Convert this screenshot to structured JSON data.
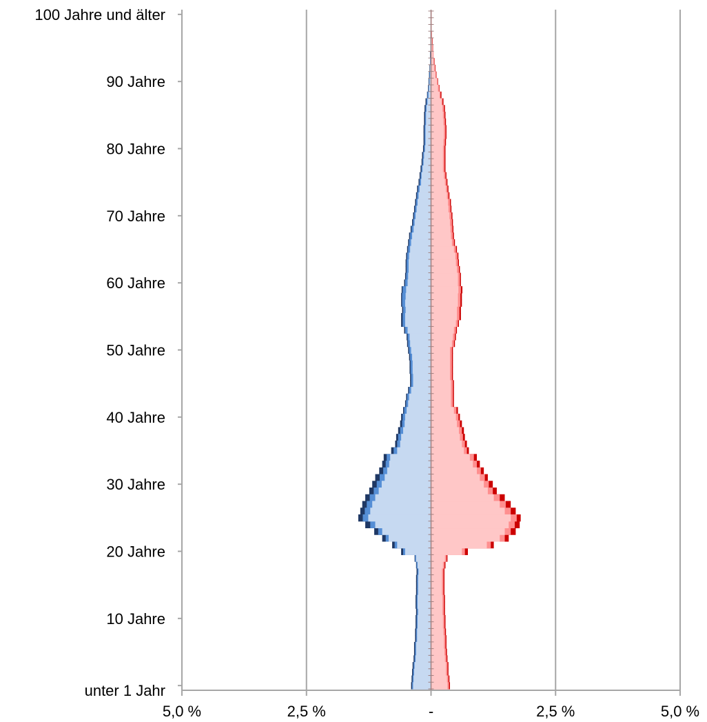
{
  "chart_data": {
    "type": "bar",
    "orientation": "horizontal",
    "layout": "population-pyramid",
    "age_labels": [
      "unter 1 Jahr",
      "10 Jahre",
      "20 Jahre",
      "30 Jahre",
      "40 Jahre",
      "50 Jahre",
      "60 Jahre",
      "70 Jahre",
      "80 Jahre",
      "90 Jahre",
      "100 Jahre und älter"
    ],
    "age_label_positions": [
      0,
      10,
      20,
      30,
      40,
      50,
      60,
      70,
      80,
      90,
      100
    ],
    "x_tick_labels": [
      "5,0 %",
      "2,5 %",
      "-",
      "2,5 %",
      "5,0 %"
    ],
    "x_tick_values": [
      -5,
      -2.5,
      0,
      2.5,
      5
    ],
    "xlim": [
      -5,
      5
    ],
    "ylim": [
      0,
      100
    ],
    "grid": true,
    "left_side": {
      "inner": [
        0.36,
        0.35,
        0.34,
        0.33,
        0.31,
        0.3,
        0.3,
        0.28,
        0.28,
        0.27,
        0.27,
        0.26,
        0.27,
        0.27,
        0.26,
        0.26,
        0.26,
        0.25,
        0.27,
        0.3,
        0.52,
        0.68,
        0.85,
        0.98,
        1.12,
        1.26,
        1.22,
        1.18,
        1.12,
        1.05,
        0.99,
        0.93,
        0.88,
        0.84,
        0.82,
        0.68,
        0.62,
        0.6,
        0.56,
        0.53,
        0.52,
        0.49,
        0.46,
        0.44,
        0.4,
        0.36,
        0.36,
        0.37,
        0.37,
        0.38,
        0.4,
        0.42,
        0.43,
        0.47,
        0.52,
        0.52,
        0.51,
        0.52,
        0.51,
        0.5,
        0.47,
        0.46,
        0.45,
        0.45,
        0.44,
        0.42,
        0.4,
        0.38,
        0.35,
        0.33,
        0.31,
        0.29,
        0.27,
        0.25,
        0.23,
        0.2,
        0.19,
        0.17,
        0.15,
        0.14,
        0.12,
        0.11,
        0.11,
        0.11,
        0.1,
        0.1,
        0.09,
        0.07,
        0.05,
        0.04,
        0.03,
        0.02,
        0.02,
        0.01,
        0.01,
        0.01,
        0.01,
        0.005,
        0.005,
        0.005,
        0.005
      ],
      "middle": [
        0.38,
        0.37,
        0.36,
        0.35,
        0.33,
        0.32,
        0.32,
        0.3,
        0.3,
        0.29,
        0.29,
        0.28,
        0.29,
        0.29,
        0.28,
        0.28,
        0.28,
        0.27,
        0.29,
        0.32,
        0.56,
        0.73,
        0.91,
        1.06,
        1.22,
        1.37,
        1.33,
        1.29,
        1.23,
        1.15,
        1.09,
        1.03,
        0.96,
        0.91,
        0.89,
        0.75,
        0.68,
        0.66,
        0.62,
        0.58,
        0.57,
        0.54,
        0.5,
        0.48,
        0.44,
        0.4,
        0.4,
        0.41,
        0.41,
        0.42,
        0.44,
        0.46,
        0.47,
        0.52,
        0.57,
        0.57,
        0.56,
        0.58,
        0.58,
        0.57,
        0.52,
        0.5,
        0.49,
        0.49,
        0.48,
        0.46,
        0.44,
        0.42,
        0.39,
        0.36,
        0.34,
        0.32,
        0.3,
        0.28,
        0.26,
        0.23,
        0.21,
        0.19,
        0.17,
        0.16,
        0.14,
        0.13,
        0.13,
        0.13,
        0.12,
        0.12,
        0.11,
        0.09,
        0.07,
        0.05,
        0.04,
        0.03,
        0.02,
        0.02,
        0.01,
        0.01,
        0.01,
        0.005,
        0.005,
        0.005,
        0.005
      ],
      "outer": [
        0.4,
        0.39,
        0.38,
        0.37,
        0.35,
        0.34,
        0.34,
        0.32,
        0.32,
        0.31,
        0.31,
        0.3,
        0.31,
        0.31,
        0.3,
        0.3,
        0.3,
        0.29,
        0.3,
        0.33,
        0.6,
        0.78,
        0.98,
        1.14,
        1.32,
        1.46,
        1.42,
        1.38,
        1.32,
        1.24,
        1.18,
        1.12,
        1.04,
        0.98,
        0.95,
        0.8,
        0.72,
        0.7,
        0.66,
        0.62,
        0.6,
        0.56,
        0.52,
        0.5,
        0.46,
        0.42,
        0.42,
        0.43,
        0.43,
        0.44,
        0.46,
        0.48,
        0.49,
        0.54,
        0.6,
        0.6,
        0.58,
        0.6,
        0.6,
        0.59,
        0.54,
        0.52,
        0.51,
        0.51,
        0.5,
        0.48,
        0.46,
        0.44,
        0.41,
        0.38,
        0.36,
        0.34,
        0.32,
        0.3,
        0.28,
        0.25,
        0.23,
        0.21,
        0.19,
        0.18,
        0.16,
        0.15,
        0.15,
        0.15,
        0.14,
        0.14,
        0.13,
        0.11,
        0.08,
        0.06,
        0.05,
        0.04,
        0.03,
        0.02,
        0.02,
        0.01,
        0.01,
        0.01,
        0.005,
        0.005,
        0.005
      ]
    },
    "right_side": {
      "inner": [
        0.33,
        0.32,
        0.3,
        0.3,
        0.28,
        0.27,
        0.26,
        0.26,
        0.25,
        0.24,
        0.24,
        0.23,
        0.23,
        0.23,
        0.22,
        0.22,
        0.22,
        0.22,
        0.24,
        0.28,
        0.62,
        1.12,
        1.38,
        1.48,
        1.56,
        1.6,
        1.48,
        1.38,
        1.26,
        1.14,
        1.06,
        0.98,
        0.92,
        0.84,
        0.78,
        0.66,
        0.62,
        0.58,
        0.56,
        0.52,
        0.5,
        0.46,
        0.4,
        0.4,
        0.4,
        0.4,
        0.38,
        0.38,
        0.38,
        0.38,
        0.38,
        0.42,
        0.44,
        0.46,
        0.5,
        0.52,
        0.52,
        0.54,
        0.54,
        0.55,
        0.54,
        0.54,
        0.52,
        0.5,
        0.49,
        0.46,
        0.42,
        0.4,
        0.39,
        0.38,
        0.37,
        0.35,
        0.34,
        0.32,
        0.3,
        0.28,
        0.26,
        0.24,
        0.24,
        0.24,
        0.24,
        0.25,
        0.26,
        0.26,
        0.25,
        0.24,
        0.23,
        0.21,
        0.17,
        0.14,
        0.12,
        0.09,
        0.07,
        0.05,
        0.04,
        0.03,
        0.02,
        0.01,
        0.01,
        0.01,
        0.01
      ],
      "middle": [
        0.36,
        0.35,
        0.33,
        0.33,
        0.31,
        0.3,
        0.29,
        0.29,
        0.28,
        0.27,
        0.27,
        0.26,
        0.26,
        0.26,
        0.25,
        0.25,
        0.25,
        0.25,
        0.27,
        0.31,
        0.68,
        1.2,
        1.48,
        1.6,
        1.68,
        1.72,
        1.6,
        1.5,
        1.38,
        1.24,
        1.16,
        1.08,
        1.0,
        0.92,
        0.86,
        0.72,
        0.68,
        0.64,
        0.62,
        0.58,
        0.55,
        0.51,
        0.44,
        0.44,
        0.44,
        0.44,
        0.42,
        0.42,
        0.42,
        0.42,
        0.42,
        0.46,
        0.48,
        0.5,
        0.54,
        0.57,
        0.57,
        0.59,
        0.59,
        0.6,
        0.58,
        0.58,
        0.56,
        0.54,
        0.53,
        0.5,
        0.46,
        0.44,
        0.43,
        0.42,
        0.41,
        0.39,
        0.38,
        0.35,
        0.33,
        0.31,
        0.29,
        0.27,
        0.27,
        0.27,
        0.27,
        0.28,
        0.29,
        0.29,
        0.28,
        0.27,
        0.26,
        0.23,
        0.19,
        0.16,
        0.13,
        0.1,
        0.08,
        0.06,
        0.05,
        0.03,
        0.02,
        0.02,
        0.01,
        0.01,
        0.01
      ],
      "outer": [
        0.38,
        0.37,
        0.35,
        0.35,
        0.33,
        0.32,
        0.31,
        0.31,
        0.3,
        0.29,
        0.29,
        0.28,
        0.28,
        0.28,
        0.27,
        0.27,
        0.27,
        0.27,
        0.29,
        0.33,
        0.74,
        1.26,
        1.56,
        1.7,
        1.78,
        1.8,
        1.7,
        1.6,
        1.48,
        1.32,
        1.24,
        1.14,
        1.06,
        0.98,
        0.92,
        0.76,
        0.72,
        0.68,
        0.66,
        0.62,
        0.58,
        0.54,
        0.46,
        0.46,
        0.46,
        0.46,
        0.44,
        0.44,
        0.44,
        0.44,
        0.44,
        0.48,
        0.5,
        0.52,
        0.56,
        0.6,
        0.6,
        0.62,
        0.62,
        0.63,
        0.6,
        0.6,
        0.58,
        0.56,
        0.55,
        0.52,
        0.48,
        0.46,
        0.45,
        0.44,
        0.43,
        0.41,
        0.4,
        0.37,
        0.35,
        0.33,
        0.31,
        0.29,
        0.29,
        0.29,
        0.29,
        0.3,
        0.31,
        0.31,
        0.3,
        0.29,
        0.28,
        0.25,
        0.21,
        0.17,
        0.14,
        0.11,
        0.09,
        0.07,
        0.05,
        0.04,
        0.03,
        0.02,
        0.01,
        0.01,
        0.01
      ]
    },
    "colors": {
      "left_inner": "#c6d9f1",
      "left_middle": "#558ed5",
      "left_outer": "#1f3864",
      "right_inner": "#ffc7c7",
      "right_middle": "#ff8f8f",
      "right_outer": "#cc0000",
      "grid": "#a6a6a6",
      "axis": "#a6a6a6",
      "center_axis": "#a08080"
    }
  }
}
